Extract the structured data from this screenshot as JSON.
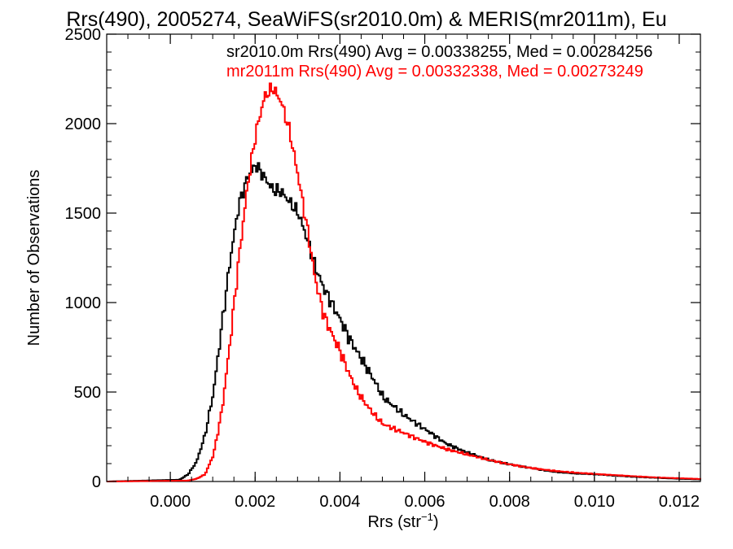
{
  "chart_data": {
    "type": "line",
    "title": "Rrs(490), 2005274, SeaWiFS(sr2010.0m) & MERIS(mr2011m), Eu",
    "xlabel_base": "Rrs (str",
    "xlabel_sup": "−1",
    "xlabel_end": ")",
    "ylabel": "Number of Observations",
    "xlim": [
      -0.0015,
      0.0125
    ],
    "ylim": [
      0,
      2500
    ],
    "x_ticks": [
      {
        "v": 0.0,
        "label": "0.000"
      },
      {
        "v": 0.002,
        "label": "0.002"
      },
      {
        "v": 0.004,
        "label": "0.004"
      },
      {
        "v": 0.006,
        "label": "0.006"
      },
      {
        "v": 0.008,
        "label": "0.008"
      },
      {
        "v": 0.01,
        "label": "0.010"
      },
      {
        "v": 0.012,
        "label": "0.012"
      }
    ],
    "y_ticks": [
      {
        "v": 0,
        "label": "0"
      },
      {
        "v": 500,
        "label": "500"
      },
      {
        "v": 1000,
        "label": "1000"
      },
      {
        "v": 1500,
        "label": "1500"
      },
      {
        "v": 2000,
        "label": "2000"
      },
      {
        "v": 2500,
        "label": "2500"
      }
    ],
    "grid": false,
    "legend_position": "top-right",
    "series": [
      {
        "name": "sr2010.0m Rrs(490) Avg = 0.00338255, Med = 0.00284256",
        "color": "#000000",
        "x": [
          -0.0015,
          0.0002,
          0.0004,
          0.0006,
          0.0008,
          0.001,
          0.0012,
          0.0014,
          0.0016,
          0.0018,
          0.002,
          0.0022,
          0.0024,
          0.0026,
          0.0028,
          0.003,
          0.0032,
          0.0034,
          0.0036,
          0.0038,
          0.004,
          0.0042,
          0.0044,
          0.0046,
          0.0048,
          0.005,
          0.0055,
          0.006,
          0.0065,
          0.007,
          0.0075,
          0.008,
          0.0085,
          0.009,
          0.0095,
          0.01,
          0.0105,
          0.011,
          0.0115,
          0.012,
          0.0125
        ],
        "y": [
          0,
          10,
          40,
          110,
          260,
          500,
          880,
          1250,
          1550,
          1700,
          1770,
          1700,
          1630,
          1620,
          1560,
          1500,
          1360,
          1200,
          1080,
          990,
          900,
          800,
          720,
          640,
          560,
          470,
          370,
          290,
          210,
          160,
          120,
          95,
          75,
          55,
          45,
          40,
          32,
          25,
          20,
          15,
          12
        ]
      },
      {
        "name": "mr2011m Rrs(490) Avg = 0.00332338, Med = 0.00273249",
        "color": "#ff0000",
        "x": [
          -0.0015,
          0.0004,
          0.0006,
          0.0008,
          0.001,
          0.0012,
          0.0014,
          0.0016,
          0.0018,
          0.002,
          0.0022,
          0.0024,
          0.0026,
          0.0028,
          0.003,
          0.0032,
          0.0034,
          0.0036,
          0.0038,
          0.004,
          0.0042,
          0.0044,
          0.0046,
          0.0048,
          0.005,
          0.0055,
          0.006,
          0.0065,
          0.007,
          0.0075,
          0.008,
          0.0085,
          0.009,
          0.0095,
          0.01,
          0.0105,
          0.011,
          0.0115,
          0.012,
          0.0125
        ],
        "y": [
          0,
          5,
          15,
          40,
          150,
          400,
          800,
          1250,
          1650,
          1950,
          2150,
          2200,
          2120,
          1950,
          1700,
          1430,
          1130,
          930,
          820,
          720,
          600,
          500,
          430,
          370,
          320,
          270,
          220,
          180,
          150,
          120,
          95,
          75,
          60,
          50,
          42,
          35,
          28,
          22,
          18,
          14
        ]
      }
    ]
  }
}
